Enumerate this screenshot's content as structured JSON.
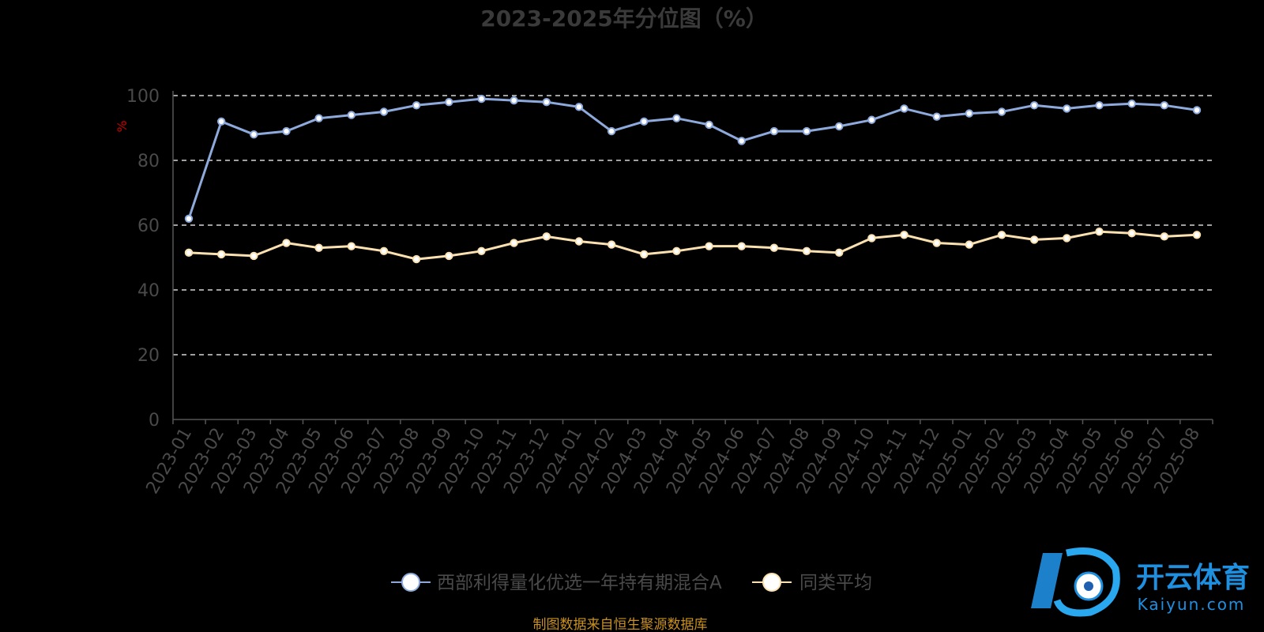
{
  "title": "2023-2025年分位图（%）",
  "source_note": "制图数据来自恒生聚源数据库",
  "watermark": {
    "brand": "开云体育",
    "domain": "Kaiyun.com"
  },
  "colors": {
    "series1": "#8eaadc",
    "series2": "#fbe0b0",
    "ylabel": "#cc0000",
    "source": "#c8901e",
    "watermark": "#1f8fe0"
  },
  "chart_data": {
    "type": "line",
    "title": "2023-2025年分位图（%）",
    "ylabel": "%",
    "xlabel": "",
    "ylim": [
      0,
      100
    ],
    "yticks": [
      0,
      20,
      40,
      60,
      80,
      100
    ],
    "grid": true,
    "legend_position": "bottom",
    "categories": [
      "2023-01",
      "2023-02",
      "2023-03",
      "2023-04",
      "2023-05",
      "2023-06",
      "2023-07",
      "2023-08",
      "2023-09",
      "2023-10",
      "2023-11",
      "2023-12",
      "2024-01",
      "2024-02",
      "2024-03",
      "2024-04",
      "2024-05",
      "2024-06",
      "2024-07",
      "2024-08",
      "2024-09",
      "2024-10",
      "2024-11",
      "2024-12",
      "2025-01",
      "2025-02",
      "2025-03",
      "2025-04",
      "2025-05",
      "2025-06",
      "2025-07",
      "2025-08"
    ],
    "series": [
      {
        "name": "西部利得量化优选一年持有期混合A",
        "values": [
          62,
          92,
          88,
          89,
          93,
          94,
          95,
          97,
          98,
          99,
          98.5,
          98,
          96.5,
          89,
          92,
          93,
          91,
          86,
          89,
          89,
          90.5,
          92.5,
          96,
          93.5,
          94.5,
          95,
          97,
          96,
          97,
          97.5,
          97,
          95.5
        ]
      },
      {
        "name": "同类平均",
        "values": [
          51.5,
          51,
          50.5,
          54.5,
          53,
          53.5,
          52,
          49.5,
          50.5,
          52,
          54.5,
          56.5,
          55,
          54,
          51,
          52,
          53.5,
          53.5,
          53,
          52,
          51.5,
          56,
          57,
          54.5,
          54,
          57,
          55.5,
          56,
          58,
          57.5,
          56.5,
          57
        ]
      }
    ]
  }
}
